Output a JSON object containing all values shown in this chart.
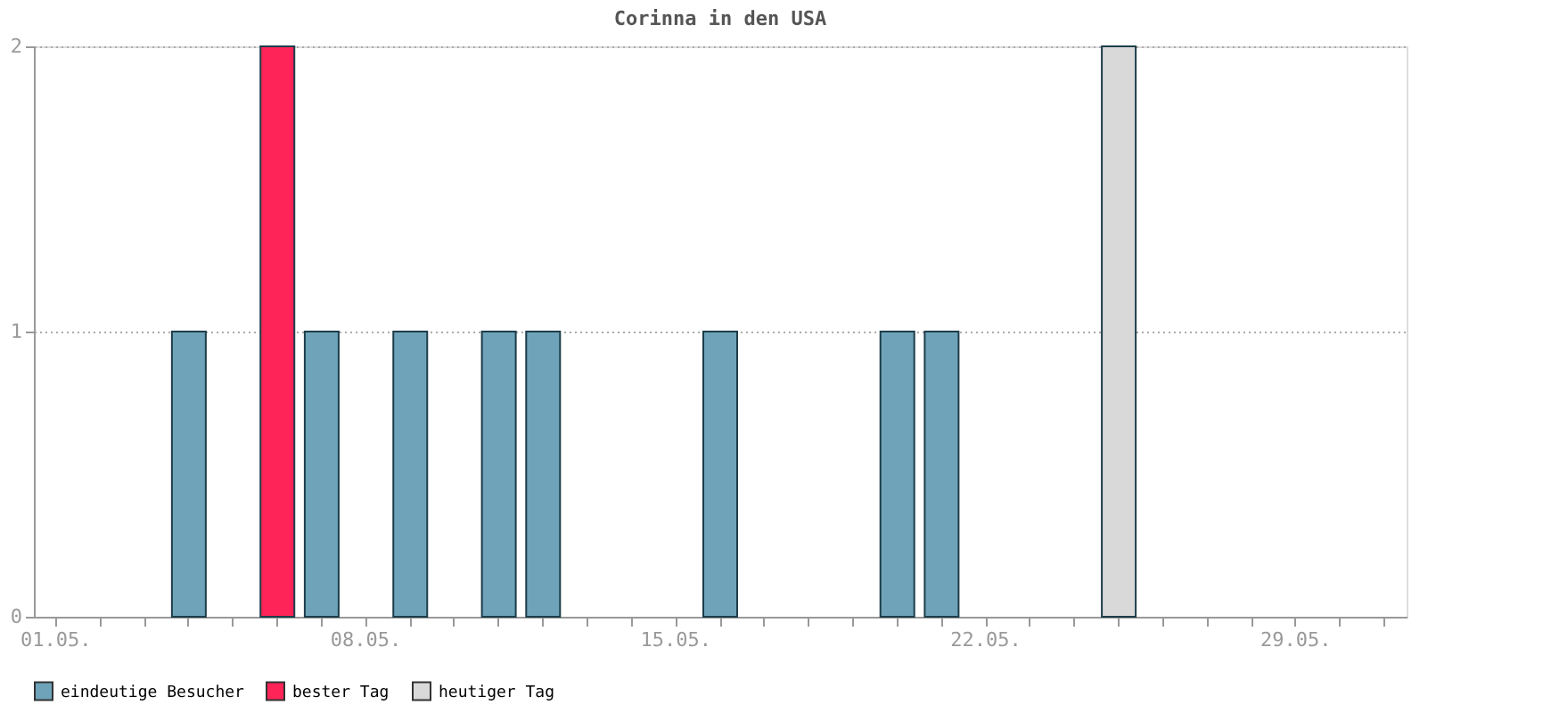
{
  "chart_data": {
    "type": "bar",
    "title": "Corinna in den USA",
    "categories": [
      "01.05.",
      null,
      null,
      null,
      null,
      null,
      null,
      "08.05.",
      null,
      null,
      null,
      null,
      null,
      null,
      "15.05.",
      null,
      null,
      null,
      null,
      null,
      null,
      "22.05.",
      null,
      null,
      null,
      null,
      null,
      null,
      "29.05.",
      null,
      null
    ],
    "series": [
      {
        "name": "eindeutige Besucher",
        "color": "#6fa3b9",
        "values": [
          null,
          null,
          null,
          1,
          null,
          null,
          1,
          null,
          1,
          null,
          1,
          1,
          null,
          null,
          null,
          1,
          null,
          null,
          null,
          1,
          1,
          null,
          null,
          null,
          null,
          null,
          null,
          null,
          null,
          null,
          null
        ]
      },
      {
        "name": "bester Tag",
        "color": "#ff2458",
        "values": [
          null,
          null,
          null,
          null,
          null,
          2,
          null,
          null,
          null,
          null,
          null,
          null,
          null,
          null,
          null,
          null,
          null,
          null,
          null,
          null,
          null,
          null,
          null,
          null,
          null,
          null,
          null,
          null,
          null,
          null,
          null
        ]
      },
      {
        "name": "heutiger Tag",
        "color": "#d9d9d9",
        "values": [
          null,
          null,
          null,
          null,
          null,
          null,
          null,
          null,
          null,
          null,
          null,
          null,
          null,
          null,
          null,
          null,
          null,
          null,
          null,
          null,
          null,
          null,
          null,
          null,
          2,
          null,
          null,
          null,
          null,
          null,
          null
        ]
      }
    ],
    "ylim": [
      0,
      2
    ],
    "yticks": [
      0,
      1,
      2
    ],
    "grid": "y",
    "legend": "bottom"
  }
}
